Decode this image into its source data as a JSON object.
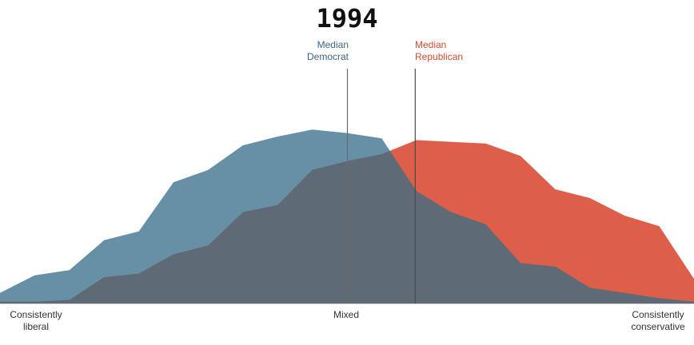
{
  "chart_data": {
    "type": "area",
    "title": "1994",
    "x_axis_labels": {
      "left": [
        "Consistently",
        "liberal"
      ],
      "middle": [
        "Mixed"
      ],
      "right": [
        "Consistently",
        "conservative"
      ]
    },
    "xlim": [
      0,
      20
    ],
    "ylim": [
      0,
      100
    ],
    "series": [
      {
        "color": "#6690a5",
        "x": [
          0,
          1,
          2,
          3,
          4,
          5,
          6,
          7,
          8,
          9,
          10,
          11,
          12,
          13,
          14,
          15,
          16,
          17,
          18,
          19,
          20
        ],
        "values": [
          6,
          16,
          19,
          36,
          41,
          69,
          76,
          90,
          95,
          99,
          97,
          94,
          64,
          52,
          45,
          23,
          21,
          9,
          6,
          3,
          1
        ]
      },
      {
        "color": "#dd5f4a",
        "x": [
          0,
          1,
          2,
          3,
          4,
          5,
          6,
          7,
          8,
          9,
          10,
          11,
          12,
          13,
          14,
          15,
          16,
          17,
          18,
          19,
          20
        ],
        "values": [
          1,
          1,
          2,
          15,
          17,
          28,
          33,
          52,
          56,
          76,
          81,
          85,
          93,
          92,
          91,
          84,
          65,
          60,
          50,
          44,
          14
        ]
      }
    ],
    "overlap_color": "#5e6a76",
    "medians": [
      {
        "label": [
          "Median",
          "Democrat"
        ],
        "x": 10,
        "color": "#3d6681"
      },
      {
        "label": [
          "Median",
          "Republican"
        ],
        "x": 12,
        "color": "#d24c2c"
      }
    ],
    "grid": false,
    "legend": "none"
  }
}
